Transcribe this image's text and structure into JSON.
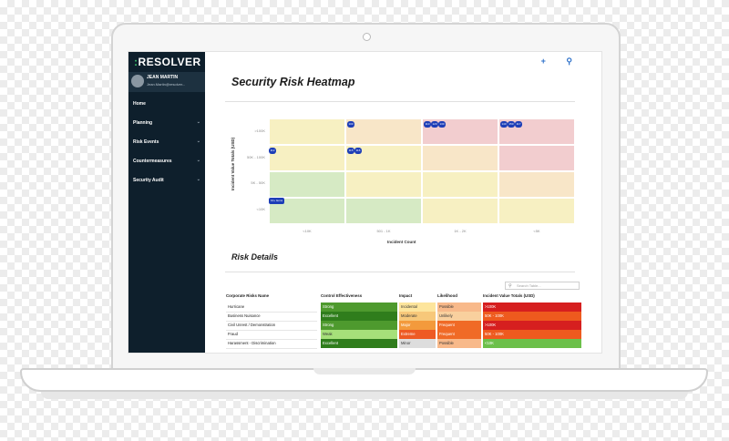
{
  "brand": {
    "prefix": ":",
    "name": "RESOLVER"
  },
  "user": {
    "name": "JEAN MARTIN",
    "email": "Jean.Martin@resolver..."
  },
  "nav": [
    {
      "label": "Home",
      "chevron": ""
    },
    {
      "label": "Planning",
      "chevron": "⌄"
    },
    {
      "label": "Risk Events",
      "chevron": "⌄"
    },
    {
      "label": "Countermeasures",
      "chevron": "⌄"
    },
    {
      "label": "Security Audit",
      "chevron": "⌄"
    }
  ],
  "toolbar": {
    "add_icon": "+",
    "search_icon": "⚲"
  },
  "page_title": "Security Risk Heatmap",
  "heatmap": {
    "y_axis_label": "Incident Value Totals (USD)",
    "x_axis_label": "Incident Count",
    "y_ticks": [
      ">100K",
      "50K - 100K",
      "5K - 50K",
      "<10K"
    ],
    "x_ticks": [
      "<10K",
      "501 - 1K",
      "1K - 2K",
      "<5K"
    ],
    "colors": {
      "green": "#d6eac4",
      "yellow": "#f7f0c2",
      "orange": "#f8e6c8",
      "red": "#f2cdcf"
    },
    "bubble_labels": [
      "100",
      "110",
      "120",
      "130",
      "140",
      "150",
      "112",
      "115",
      "116",
      "117",
      "10+ items"
    ]
  },
  "details_title": "Risk Details",
  "search_placeholder": "Search Table...",
  "table": {
    "headers": [
      "Corporate Risks Name",
      "Control Effectiveness",
      "Impact",
      "Likelihood",
      "Incident Value Totals (USD)"
    ],
    "rows": [
      {
        "name": "Hurricane",
        "control": "Strong",
        "impact": "Incidental",
        "likelihood": "Possible",
        "value": ">100K"
      },
      {
        "name": "Business Nuisance",
        "control": "Excellent",
        "impact": "Moderate",
        "likelihood": "Unlikely",
        "value": "50K - 100K"
      },
      {
        "name": "Civil Unrest / Demonstration",
        "control": "Strong",
        "impact": "Major",
        "likelihood": "Frequent",
        "value": ">100K"
      },
      {
        "name": "Fraud",
        "control": "Weak",
        "impact": "Extreme",
        "likelihood": "Frequent",
        "value": "50K - 100K"
      },
      {
        "name": "Harassment - Discrimination",
        "control": "Excellent",
        "impact": "Minor",
        "likelihood": "Possible",
        "value": "<10K"
      }
    ],
    "colors": {
      "Strong": "#4e9a2e",
      "Excellent": "#2f7d1c",
      "Weak": "#a6e07a",
      "Incidental": "#fde59c",
      "Moderate": "#f7c87a",
      "Major": "#f39a3c",
      "Extreme": "#ee5a24",
      "Possible": "#f8b98a",
      "Unlikely": "#f9d09e",
      "Frequent": "#f06a26",
      ">100K": "#d61f1f",
      "50K - 100K": "#ee5a1e",
      "<10K": "#6cc04a"
    }
  }
}
